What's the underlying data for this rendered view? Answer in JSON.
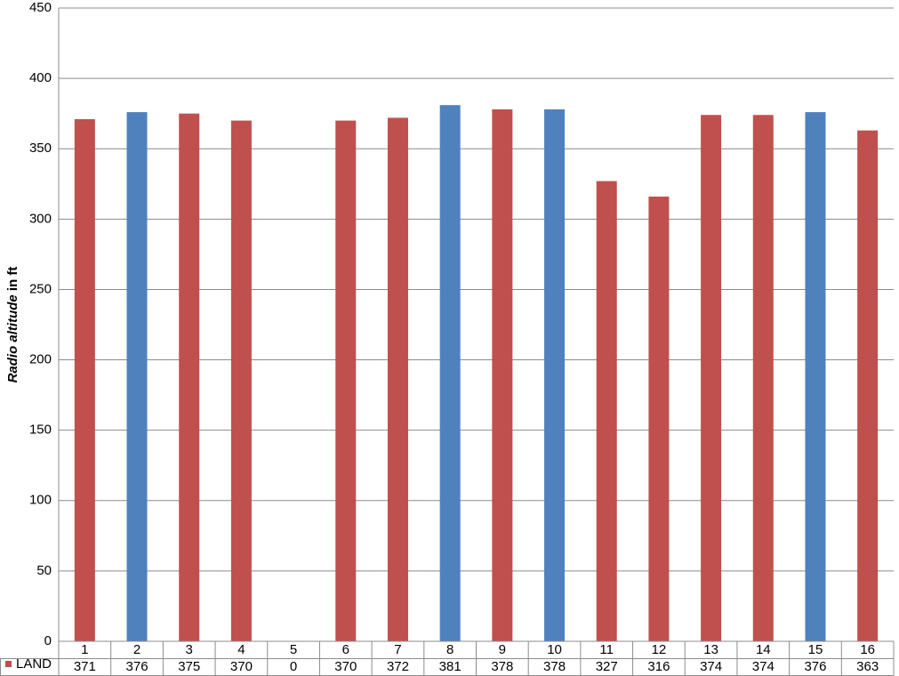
{
  "chart_data": {
    "type": "bar",
    "y_label": {
      "italic": "Radio altitude",
      "rest": "in ft"
    },
    "categories": [
      "1",
      "2",
      "3",
      "4",
      "5",
      "6",
      "7",
      "8",
      "9",
      "10",
      "11",
      "12",
      "13",
      "14",
      "15",
      "16"
    ],
    "series": [
      {
        "name": "LAND",
        "color": "#c0504d",
        "values": [
          371,
          376,
          375,
          370,
          0,
          370,
          372,
          381,
          378,
          378,
          327,
          316,
          374,
          374,
          376,
          363
        ],
        "colors": [
          "#c0504d",
          "#4f81bd",
          "#c0504d",
          "#c0504d",
          "#c0504d",
          "#c0504d",
          "#c0504d",
          "#4f81bd",
          "#c0504d",
          "#4f81bd",
          "#c0504d",
          "#c0504d",
          "#c0504d",
          "#c0504d",
          "#4f81bd",
          "#c0504d"
        ]
      }
    ],
    "ylim": [
      0,
      450
    ],
    "yticks": [
      0,
      50,
      100,
      150,
      200,
      250,
      300,
      350,
      400,
      450
    ],
    "grid": true,
    "data_table": true
  }
}
